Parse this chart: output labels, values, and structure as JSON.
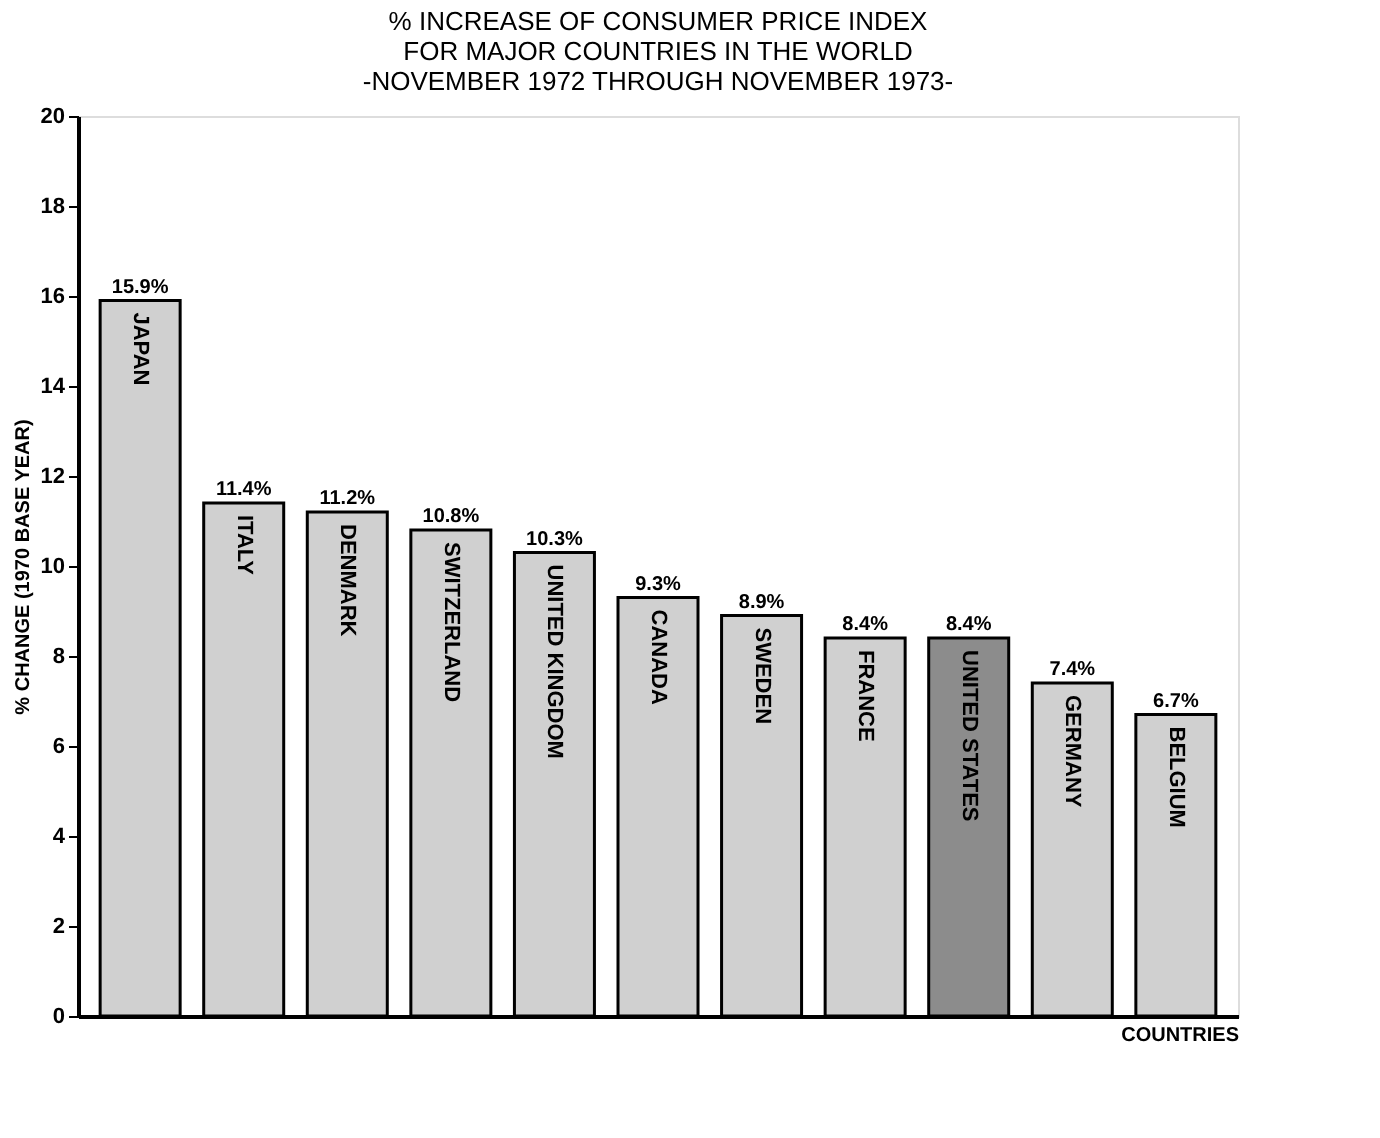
{
  "chart_data": {
    "type": "bar",
    "title": [
      "% INCREASE OF CONSUMER PRICE INDEX",
      "FOR MAJOR COUNTRIES IN THE WORLD",
      "-NOVEMBER 1972 THROUGH NOVEMBER 1973-"
    ],
    "xlabel": "COUNTRIES",
    "ylabel": "% CHANGE (1970 BASE YEAR)",
    "categories": [
      "JAPAN",
      "ITALY",
      "DENMARK",
      "SWITZERLAND",
      "UNITED KINGDOM",
      "CANADA",
      "SWEDEN",
      "FRANCE",
      "UNITED STATES",
      "GERMANY",
      "BELGIUM"
    ],
    "values": [
      15.9,
      11.4,
      11.2,
      10.8,
      10.3,
      9.3,
      8.9,
      8.4,
      8.4,
      7.4,
      6.7
    ],
    "value_labels": [
      "15.9%",
      "11.4%",
      "11.2%",
      "10.8%",
      "10.3%",
      "9.3%",
      "8.9%",
      "8.4%",
      "8.4%",
      "7.4%",
      "6.7%"
    ],
    "colors": [
      "#d0d0d0",
      "#d0d0d0",
      "#d0d0d0",
      "#d0d0d0",
      "#d0d0d0",
      "#d0d0d0",
      "#d0d0d0",
      "#d0d0d0",
      "#8c8c8c",
      "#d0d0d0",
      "#d0d0d0"
    ],
    "ylim": [
      0,
      20
    ],
    "yticks": [
      0,
      2,
      4,
      6,
      8,
      10,
      12,
      14,
      16,
      18,
      20
    ],
    "grid": false,
    "tick_labels": "y"
  }
}
